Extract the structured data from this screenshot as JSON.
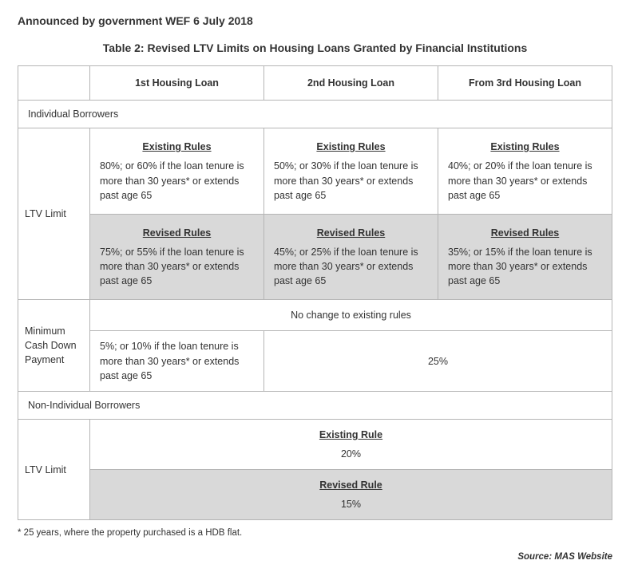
{
  "announce": "Announced by government WEF 6 July 2018",
  "title": "Table 2: Revised LTV Limits on Housing Loans Granted by Financial Institutions",
  "headers": {
    "c1": "1st Housing Loan",
    "c2": "2nd Housing Loan",
    "c3": "From 3rd Housing Loan"
  },
  "sections": {
    "individual": "Individual Borrowers",
    "nonindividual": "Non-Individual Borrowers"
  },
  "row_labels": {
    "ltv": "LTV Limit",
    "mincash": "Minimum Cash Down Payment"
  },
  "rule_headings": {
    "existing": "Existing Rules",
    "revised": "Revised Rules",
    "existing_s": "Existing Rule",
    "revised_s": "Revised Rule"
  },
  "ltv": {
    "existing": {
      "c1": "80%; or 60% if the loan tenure is more than 30 years* or extends past age 65",
      "c2": "50%; or 30% if the loan tenure is more than 30 years* or extends past age 65",
      "c3": "40%; or 20% if the loan tenure is more than 30 years* or extends past age 65"
    },
    "revised": {
      "c1": "75%; or 55% if the loan tenure is more than 30 years* or extends past age 65",
      "c2": "45%; or 25% if the loan tenure is more than 30 years* or extends past age 65",
      "c3": "35%; or 15% if the loan tenure is more than 30 years* or extends past age 65"
    }
  },
  "mincash": {
    "nochange": "No change to existing rules",
    "c1": "5%; or 10% if the loan tenure is more than 30 years* or extends past age 65",
    "c23": "25%"
  },
  "nonind": {
    "existing": "20%",
    "revised": "15%"
  },
  "footnote": "* 25 years, where the property purchased is a HDB flat.",
  "source": "Source: MAS Website"
}
